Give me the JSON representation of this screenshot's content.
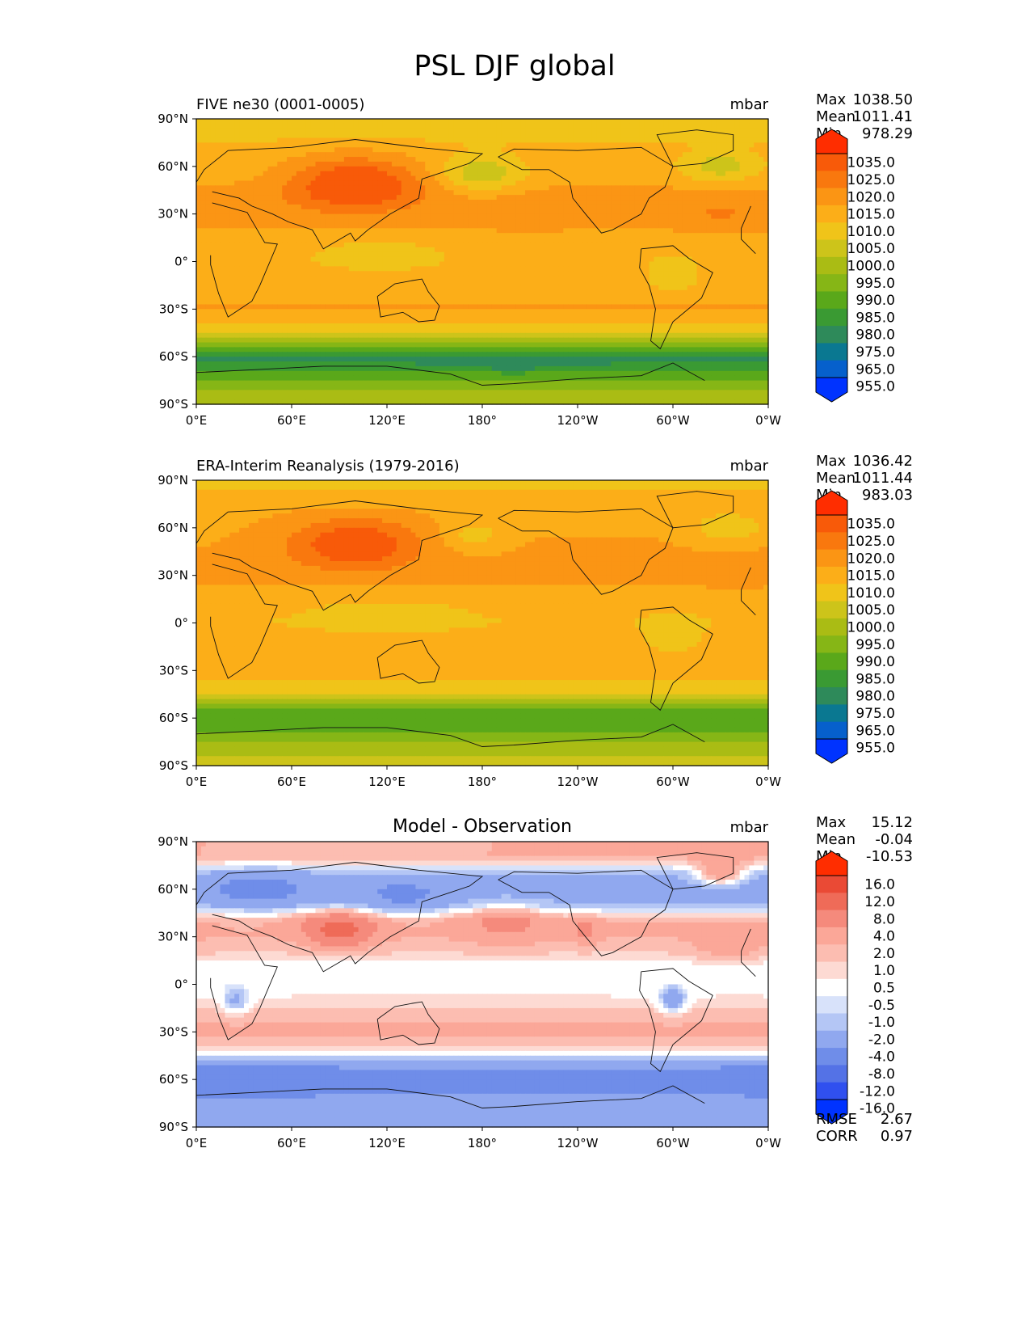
{
  "figure_title": "PSL DJF global",
  "colors": {
    "abs_levels": [
      "#0033ff",
      "#0660cc",
      "#0a7891",
      "#2e8a5a",
      "#3a9a33",
      "#5aa81a",
      "#86b616",
      "#aabc14",
      "#cdc41a",
      "#f0c419",
      "#fcae18",
      "#fb9514",
      "#f9780e",
      "#f85a09",
      "#ff2d00"
    ],
    "diff_levels": [
      "#0033ff",
      "#3050ef",
      "#5472e6",
      "#6f8de9",
      "#90a8ef",
      "#b4c6f5",
      "#d8e2fa",
      "#ffffff",
      "#fddad3",
      "#fcbdb1",
      "#fba798",
      "#f58a7c",
      "#ef6b58",
      "#ea4a35",
      "#ff2d00"
    ]
  },
  "chart_data": [
    {
      "type": "heatmap",
      "title": "FIVE ne30 (0001-0005)",
      "units": "mbar",
      "stats": [
        {
          "label": "Max",
          "value": "1038.50"
        },
        {
          "label": "Mean",
          "value": "1011.41"
        },
        {
          "label": "Min",
          "value": "978.29"
        }
      ],
      "x_ticks": [
        "0°E",
        "60°E",
        "120°E",
        "180°",
        "120°W",
        "60°W",
        "0°W"
      ],
      "y_ticks": [
        "90°N",
        "60°N",
        "30°N",
        "0°",
        "30°S",
        "60°S",
        "90°S"
      ],
      "xlim": [
        0,
        360
      ],
      "ylim": [
        -90,
        90
      ],
      "colorbar_levels": [
        "1035.0",
        "1025.0",
        "1020.0",
        "1015.0",
        "1010.0",
        "1005.0",
        "1000.0",
        "995.0",
        "990.0",
        "985.0",
        "980.0",
        "975.0",
        "965.0",
        "955.0"
      ],
      "lat_profile": [
        [
          90,
          1005
        ],
        [
          70,
          1012
        ],
        [
          55,
          1013
        ],
        [
          40,
          1017
        ],
        [
          25,
          1016
        ],
        [
          10,
          1012
        ],
        [
          0,
          1011
        ],
        [
          -15,
          1012
        ],
        [
          -30,
          1016
        ],
        [
          -45,
          1006
        ],
        [
          -55,
          988
        ],
        [
          -62,
          978
        ],
        [
          -70,
          986
        ],
        [
          -80,
          995
        ],
        [
          -90,
          996
        ]
      ],
      "anomalies": [
        {
          "lat": 50,
          "lon": 100,
          "dlat": 16,
          "dlon": 40,
          "amp": 18
        },
        {
          "lat": 55,
          "lon": 180,
          "dlat": 12,
          "dlon": 25,
          "amp": -12
        },
        {
          "lat": 60,
          "lon": 330,
          "dlat": 10,
          "dlon": 25,
          "amp": -10
        },
        {
          "lat": 30,
          "lon": 330,
          "dlat": 10,
          "dlon": 30,
          "amp": 4
        },
        {
          "lat": 30,
          "lon": 210,
          "dlat": 10,
          "dlon": 25,
          "amp": 3
        },
        {
          "lat": 5,
          "lon": 115,
          "dlat": 10,
          "dlon": 40,
          "amp": -4
        },
        {
          "lat": -10,
          "lon": 300,
          "dlat": 12,
          "dlon": 15,
          "amp": -5
        },
        {
          "lat": -65,
          "lon": 200,
          "dlat": 5,
          "dlon": 40,
          "amp": -5
        }
      ]
    },
    {
      "type": "heatmap",
      "title": "ERA-Interim Reanalysis (1979-2016)",
      "units": "mbar",
      "stats": [
        {
          "label": "Max",
          "value": "1036.42"
        },
        {
          "label": "Mean",
          "value": "1011.44"
        },
        {
          "label": "Min",
          "value": "983.03"
        }
      ],
      "x_ticks": [
        "0°E",
        "60°E",
        "120°E",
        "180°",
        "120°W",
        "60°W",
        "0°W"
      ],
      "y_ticks": [
        "90°N",
        "60°N",
        "30°N",
        "0°",
        "30°S",
        "60°S",
        "90°S"
      ],
      "xlim": [
        0,
        360
      ],
      "ylim": [
        -90,
        90
      ],
      "colorbar_levels": [
        "1035.0",
        "1025.0",
        "1020.0",
        "1015.0",
        "1010.0",
        "1005.0",
        "1000.0",
        "995.0",
        "990.0",
        "985.0",
        "980.0",
        "975.0",
        "965.0",
        "955.0"
      ],
      "lat_profile": [
        [
          90,
          1008
        ],
        [
          70,
          1014
        ],
        [
          55,
          1015
        ],
        [
          40,
          1016
        ],
        [
          25,
          1015
        ],
        [
          10,
          1011
        ],
        [
          0,
          1010
        ],
        [
          -15,
          1012
        ],
        [
          -30,
          1015
        ],
        [
          -45,
          1004
        ],
        [
          -55,
          990
        ],
        [
          -62,
          987
        ],
        [
          -70,
          990
        ],
        [
          -80,
          998
        ],
        [
          -90,
          1002
        ]
      ],
      "anomalies": [
        {
          "lat": 50,
          "lon": 100,
          "dlat": 16,
          "dlon": 40,
          "amp": 15
        },
        {
          "lat": 55,
          "lon": 175,
          "dlat": 10,
          "dlon": 20,
          "amp": -7
        },
        {
          "lat": 60,
          "lon": 335,
          "dlat": 10,
          "dlon": 25,
          "amp": -8
        },
        {
          "lat": 30,
          "lon": 340,
          "dlat": 10,
          "dlon": 25,
          "amp": 2
        },
        {
          "lat": 5,
          "lon": 120,
          "dlat": 10,
          "dlon": 40,
          "amp": -4
        },
        {
          "lat": -10,
          "lon": 300,
          "dlat": 12,
          "dlon": 15,
          "amp": -5
        }
      ]
    },
    {
      "type": "heatmap",
      "title": "Model - Observation",
      "units": "mbar",
      "stats": [
        {
          "label": "Max",
          "value": "15.12"
        },
        {
          "label": "Mean",
          "value": "-0.04"
        },
        {
          "label": "Min",
          "value": "-10.53"
        }
      ],
      "x_ticks": [
        "0°E",
        "60°E",
        "120°E",
        "180°",
        "120°W",
        "60°W",
        "0°W"
      ],
      "y_ticks": [
        "90°N",
        "60°N",
        "30°N",
        "0°",
        "30°S",
        "60°S",
        "90°S"
      ],
      "xlim": [
        0,
        360
      ],
      "ylim": [
        -90,
        90
      ],
      "colorbar_levels": [
        "16.0",
        "12.0",
        "8.0",
        "4.0",
        "2.0",
        "1.0",
        "0.5",
        "-0.5",
        "-1.0",
        "-2.0",
        "-4.0",
        "-8.0",
        "-12.0",
        "-16.0"
      ],
      "extra_stats": [
        {
          "label": "RMSE",
          "value": "2.67"
        },
        {
          "label": "CORR",
          "value": "0.97"
        }
      ],
      "lat_profile": [
        [
          90,
          2
        ],
        [
          80,
          2
        ],
        [
          70,
          -2
        ],
        [
          60,
          -3
        ],
        [
          50,
          -2
        ],
        [
          40,
          2
        ],
        [
          30,
          2
        ],
        [
          20,
          1
        ],
        [
          10,
          0
        ],
        [
          0,
          0
        ],
        [
          -15,
          1
        ],
        [
          -30,
          2.5
        ],
        [
          -40,
          1
        ],
        [
          -48,
          -2
        ],
        [
          -55,
          -5
        ],
        [
          -65,
          -5
        ],
        [
          -75,
          -3
        ],
        [
          -90,
          -3
        ]
      ],
      "anomalies": [
        {
          "lat": 60,
          "lon": 40,
          "dlat": 10,
          "dlon": 25,
          "amp": -3
        },
        {
          "lat": 35,
          "lon": 90,
          "dlat": 10,
          "dlon": 20,
          "amp": 8
        },
        {
          "lat": 55,
          "lon": 130,
          "dlat": 10,
          "dlon": 25,
          "amp": -2
        },
        {
          "lat": 40,
          "lon": 195,
          "dlat": 12,
          "dlon": 25,
          "amp": 3
        },
        {
          "lat": 35,
          "lon": 245,
          "dlat": 8,
          "dlon": 8,
          "amp": 3
        },
        {
          "lat": 70,
          "lon": 330,
          "dlat": 8,
          "dlon": 15,
          "amp": 5
        },
        {
          "lat": -10,
          "lon": 300,
          "dlat": 8,
          "dlon": 8,
          "amp": -4
        },
        {
          "lat": -10,
          "lon": 25,
          "dlat": 8,
          "dlon": 8,
          "amp": -3
        },
        {
          "lat": -60,
          "lon": 30,
          "dlat": 8,
          "dlon": 35,
          "amp": -3
        },
        {
          "lat": 25,
          "lon": 335,
          "dlat": 10,
          "dlon": 20,
          "amp": 2
        }
      ]
    }
  ]
}
